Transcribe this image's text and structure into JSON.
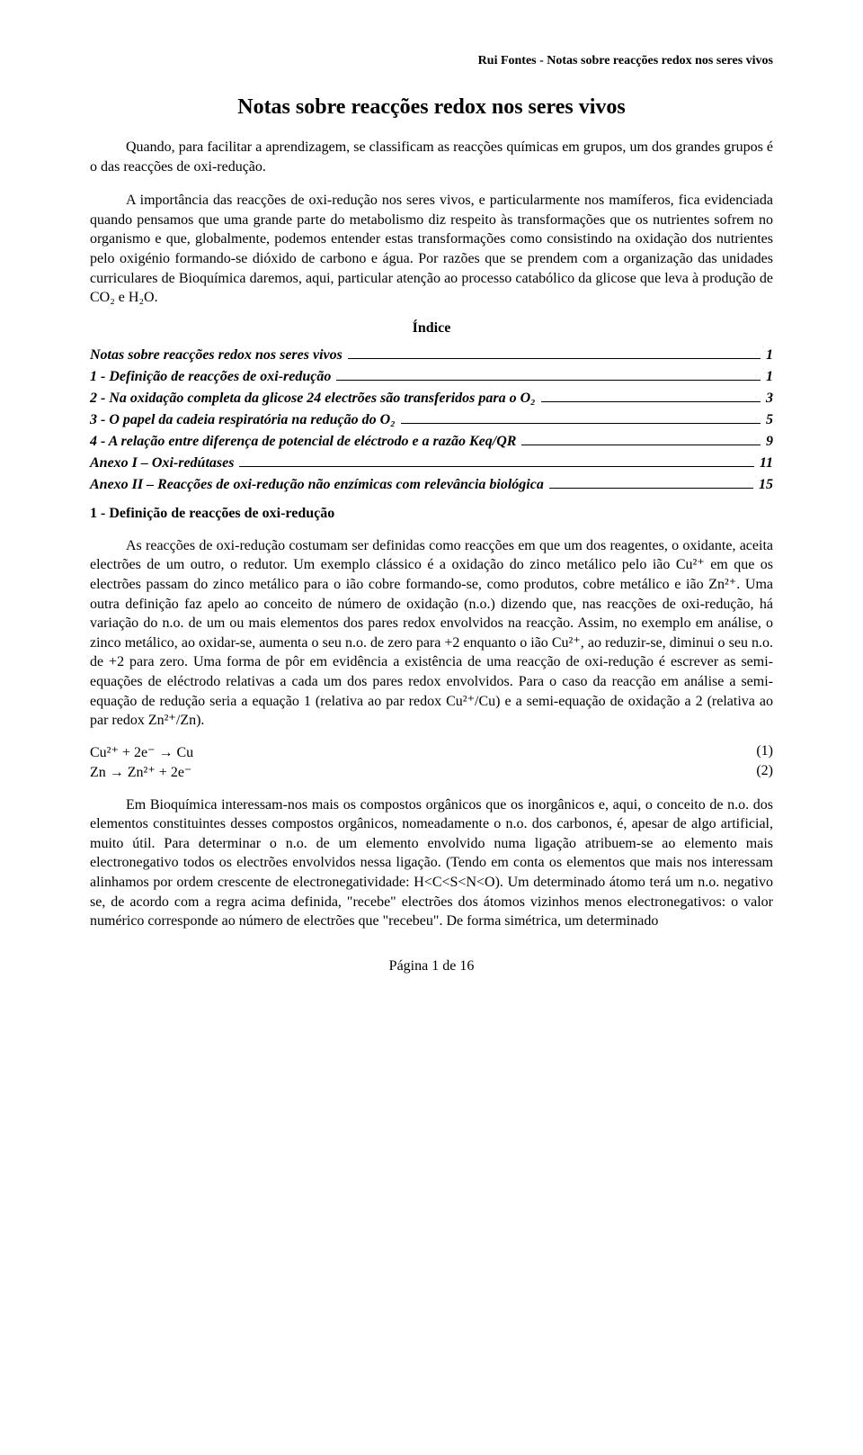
{
  "header": {
    "running": "Rui Fontes - Notas sobre reacções redox nos seres vivos"
  },
  "title": "Notas sobre reacções redox nos seres vivos",
  "paragraphs": {
    "p1": "Quando, para facilitar a aprendizagem, se classificam as reacções químicas em grupos, um dos grandes grupos é o das reacções de oxi-redução.",
    "p2": "A importância das reacções de oxi-redução nos seres vivos, e particularmente nos mamíferos, fica evidenciada quando pensamos que uma grande parte do metabolismo diz respeito às transformações que os nutrientes sofrem no organismo e que, globalmente, podemos entender estas transformações como consistindo na oxidação dos nutrientes pelo oxigénio formando-se dióxido de carbono e água. Por razões que se prendem com a organização das unidades curriculares de Bioquímica daremos, aqui, particular atenção ao processo catabólico da glicose que leva à produção de CO₂ e H₂O.",
    "p3": "As reacções de oxi-redução costumam ser definidas como reacções em que um dos reagentes, o oxidante, aceita electrões de um outro, o redutor. Um exemplo clássico é a oxidação do zinco metálico pelo ião Cu²⁺ em que os electrões passam do zinco metálico para o ião cobre formando-se, como produtos, cobre metálico e ião Zn²⁺. Uma outra definição faz apelo ao conceito de número de oxidação (n.o.) dizendo que, nas reacções de oxi-redução, há variação do n.o. de um ou mais elementos dos pares redox envolvidos na reacção. Assim, no exemplo em análise, o zinco metálico, ao oxidar-se, aumenta o seu n.o. de zero para +2 enquanto o ião Cu²⁺, ao reduzir-se, diminui o seu n.o. de +2 para zero. Uma forma de pôr em evidência a existência de uma reacção de oxi-redução é escrever as semi-equações de eléctrodo relativas a cada um dos pares redox envolvidos. Para o caso da reacção em análise a semi-equação de redução seria a equação 1 (relativa ao par redox Cu²⁺/Cu) e a semi-equação de oxidação a 2 (relativa ao par redox Zn²⁺/Zn).",
    "p4": "Em Bioquímica interessam-nos mais os compostos orgânicos que os inorgânicos e, aqui, o conceito de n.o. dos elementos constituintes desses compostos orgânicos, nomeadamente o n.o. dos carbonos, é, apesar de algo artificial, muito útil. Para determinar o n.o. de um elemento envolvido numa ligação atribuem-se ao elemento mais electronegativo todos os electrões envolvidos nessa ligação. (Tendo em conta os elementos que mais nos interessam alinhamos por ordem crescente de electronegatividade: H<C<S<N<O). Um determinado átomo terá um n.o. negativo se, de acordo com a regra acima definida, \"recebe\" electrões dos átomos vizinhos menos electronegativos: o valor numérico corresponde ao número de electrões que \"recebeu\". De forma simétrica, um determinado"
  },
  "indice": {
    "title": "Índice",
    "items": [
      {
        "label": "Notas sobre reacções redox nos seres vivos",
        "page": "1"
      },
      {
        "label": "1 -     Definição de reacções de oxi-redução",
        "page": "1"
      },
      {
        "label": "2 -     Na oxidação completa da glicose 24 electrões são transferidos para o O₂",
        "page": "3"
      },
      {
        "label": "3 -     O papel da cadeia respiratória na redução do O₂",
        "page": "5"
      },
      {
        "label": "4 -     A relação entre diferença de potencial de eléctrodo e a razão Keq/QR",
        "page": "9"
      },
      {
        "label": "Anexo I – Oxi-redútases",
        "page": "11"
      },
      {
        "label": "Anexo II – Reacções de oxi-redução não enzímicas com relevância biológica",
        "page": "15"
      }
    ]
  },
  "section1": {
    "heading": "1 -  Definição de reacções de oxi-redução"
  },
  "equations": {
    "eq1_lhs": "Cu²⁺ + 2e⁻ → Cu",
    "eq1_num": "(1)",
    "eq2_lhs": "Zn → Zn²⁺ + 2e⁻",
    "eq2_num": "(2)"
  },
  "footer": {
    "pager": "Página 1 de 16"
  }
}
